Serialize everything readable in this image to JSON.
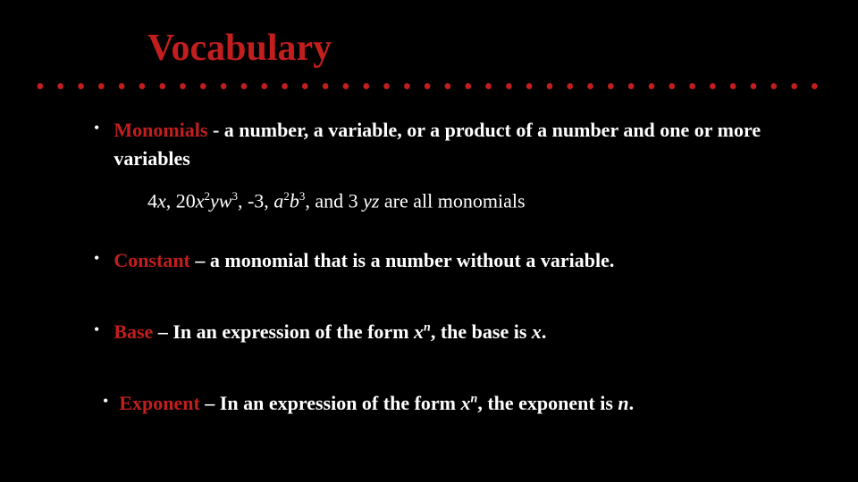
{
  "background_color": "#000000",
  "accent_color": "#c21e1e",
  "text_color": "#ffffff",
  "title": "Vocabulary",
  "title_fontsize": 42,
  "body_fontsize": 22,
  "dots": "• • • • • • • • • • • • • • • • • • • • • • • • • • • • • • • • • • • • • • • • • •",
  "items": {
    "monomials": {
      "term": "Monomials",
      "sep": " -  ",
      "definition": "a number, a variable, or a product of a number and one or more variables",
      "example_prefix": "4",
      "example_x": "x",
      "example_comma1": ", 20",
      "example_x2": "x",
      "example_sup2": "2",
      "example_yw": "yw",
      "example_sup3": "3",
      "example_mid": ", -3, ",
      "example_a": "a",
      "example_supa": "2",
      "example_b": "b",
      "example_supb": "3",
      "example_and": ", and 3",
      "example_yz": " yz ",
      "example_tail": " are all monomials"
    },
    "constant": {
      "term": "Constant",
      "sep": " – ",
      "definition": "a monomial that is a number without a variable."
    },
    "base": {
      "term": "Base",
      "sep": " –  ",
      "def_pre": "In an expression of the form   ",
      "x": "x",
      "n": "n",
      "def_mid": ",  the base is  ",
      "x2": "x",
      "def_post": "."
    },
    "exponent": {
      "term": "Exponent",
      "sep": " – ",
      "def_pre": "In an expression of the form   ",
      "x": "x",
      "n": "n",
      "def_mid": ",  the exponent is  ",
      "nvar": "n",
      "def_post": "."
    }
  }
}
